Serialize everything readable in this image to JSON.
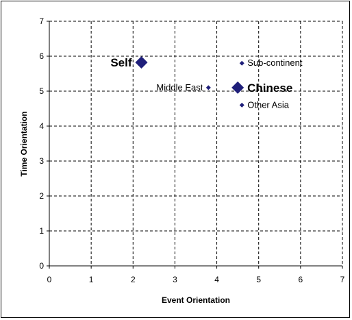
{
  "chart_data": {
    "type": "scatter",
    "title": "",
    "xlabel": "Event Orientation",
    "ylabel": "Time Orientation",
    "xlim": [
      0,
      7
    ],
    "ylim": [
      0,
      7
    ],
    "xticks": [
      "0",
      "1",
      "2",
      "3",
      "4",
      "5",
      "6",
      "7"
    ],
    "yticks": [
      "0",
      "1",
      "2",
      "3",
      "4",
      "5",
      "6",
      "7"
    ],
    "grid": "dashed",
    "legend": "none",
    "marker_color": "#1f1f7a",
    "points": [
      {
        "label": "Self",
        "x": 2.2,
        "y": 5.82,
        "size": "large",
        "label_pos": "left"
      },
      {
        "label": "Sub-continent",
        "x": 4.6,
        "y": 5.8,
        "size": "small",
        "label_pos": "right"
      },
      {
        "label": "Middle East",
        "x": 3.8,
        "y": 5.1,
        "size": "small",
        "label_pos": "left"
      },
      {
        "label": "Chinese",
        "x": 4.5,
        "y": 5.1,
        "size": "large",
        "label_pos": "right"
      },
      {
        "label": "Other Asia",
        "x": 4.6,
        "y": 4.6,
        "size": "small",
        "label_pos": "right"
      }
    ]
  }
}
